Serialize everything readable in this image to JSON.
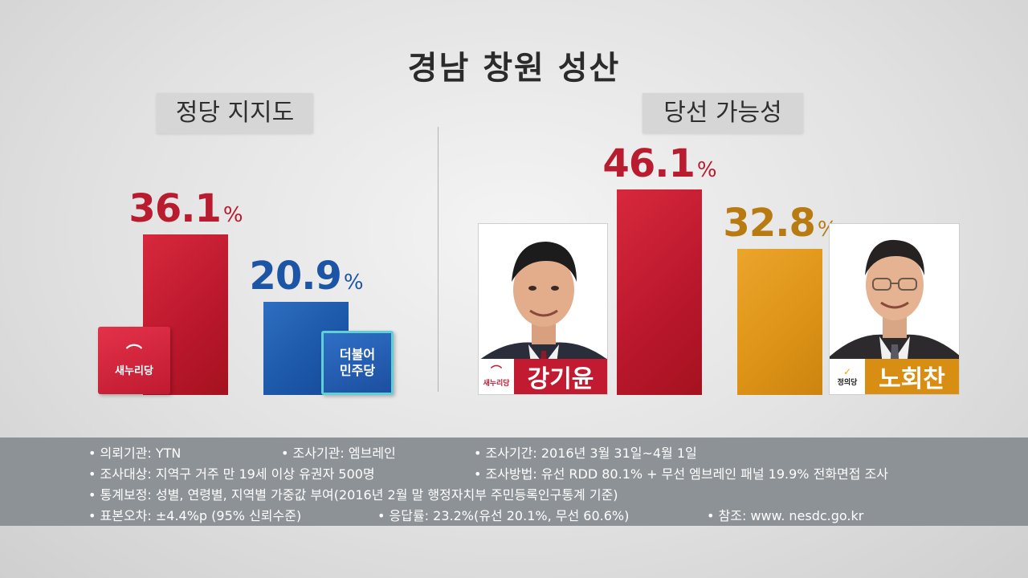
{
  "title": "경남 창원 성산",
  "chart_data": [
    {
      "type": "bar",
      "title": "정당 지지도",
      "categories": [
        "새누리당",
        "더불어민주당"
      ],
      "values": [
        36.1,
        20.9
      ],
      "value_labels": [
        "36.1",
        "20.9"
      ],
      "unit": "%",
      "colors": [
        "#c01a30",
        "#1b56a8"
      ],
      "logos": [
        {
          "icon": "saenuri-party-logo",
          "text": "새누리당"
        },
        {
          "icon": "minjoo-party-logo",
          "text_lines": [
            "더불어",
            "민주당"
          ]
        }
      ]
    },
    {
      "type": "bar",
      "title": "당선 가능성",
      "categories": [
        "강기윤",
        "노회찬"
      ],
      "values": [
        46.1,
        32.8
      ],
      "value_labels": [
        "46.1",
        "32.8"
      ],
      "unit": "%",
      "colors": [
        "#c01a30",
        "#dc9216"
      ],
      "candidates": [
        {
          "name": "강기윤",
          "party_logo_text": "새누리당",
          "icon": "candidate-photo"
        },
        {
          "name": "노회찬",
          "party_logo_text": "정의당",
          "icon": "candidate-photo"
        }
      ]
    }
  ],
  "info": {
    "client": "• 의뢰기관: YTN",
    "agency": "• 조사기관: 엠브레인",
    "period": "• 조사기간: 2016년 3월 31일~4월 1일",
    "target": "• 조사대상: 지역구 거주 만 19세 이상 유권자 500명",
    "method": "• 조사방법: 유선 RDD 80.1% + 무선 엠브레인 패널 19.9% 전화면접 조사",
    "weighting": "• 통계보정: 성별, 연령별, 지역별 가중값 부여(2016년 2월 말 행정자치부 주민등록인구통계 기준)",
    "error": "• 표본오차: ±4.4%p (95% 신뢰수준)",
    "response": "• 응답률: 23.2%(유선 20.1%, 무선 60.6%)",
    "reference": "• 참조: www. nesdc.go.kr"
  }
}
